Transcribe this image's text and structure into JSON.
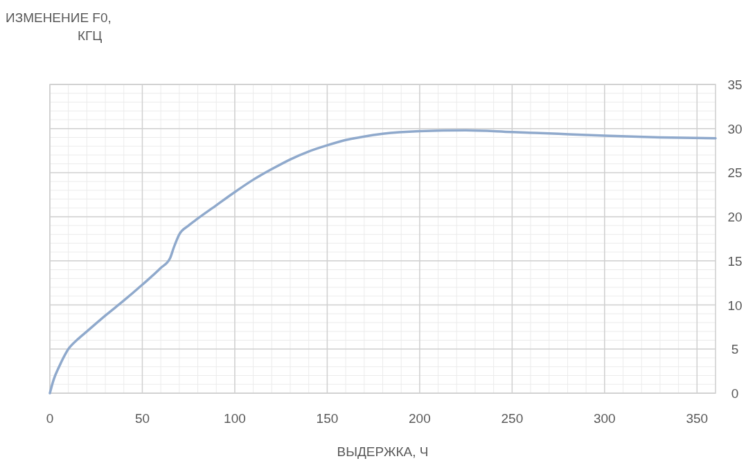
{
  "chart_data": {
    "type": "line",
    "xlabel": "ВЫДЕРЖКА, Ч",
    "ylabel": "ИЗМЕНЕНИЕ F0, КГЦ",
    "x": [
      0,
      2,
      5,
      10,
      15,
      20,
      30,
      40,
      50,
      60,
      65,
      67,
      70,
      75,
      80,
      90,
      100,
      110,
      120,
      130,
      140,
      150,
      160,
      170,
      180,
      200,
      225,
      250,
      275,
      300,
      330,
      360
    ],
    "series": [
      {
        "color": "#8fa9cc",
        "values": [
          0,
          1.5,
          3,
          5,
          6.1,
          7,
          8.8,
          10.5,
          12.3,
          14.2,
          15.3,
          16.5,
          18,
          19,
          19.8,
          21.3,
          22.8,
          24.2,
          25.4,
          26.5,
          27.4,
          28.1,
          28.7,
          29.1,
          29.4,
          29.7,
          29.8,
          29.6,
          29.4,
          29.2,
          29,
          28.9
        ]
      }
    ],
    "xlim": [
      0,
      360
    ],
    "xticks": [
      0,
      50,
      100,
      150,
      200,
      250,
      300,
      350
    ],
    "ylim": [
      0,
      35
    ],
    "yticks": [
      0,
      5,
      10,
      15,
      20,
      25,
      30,
      35
    ],
    "grid": true
  }
}
